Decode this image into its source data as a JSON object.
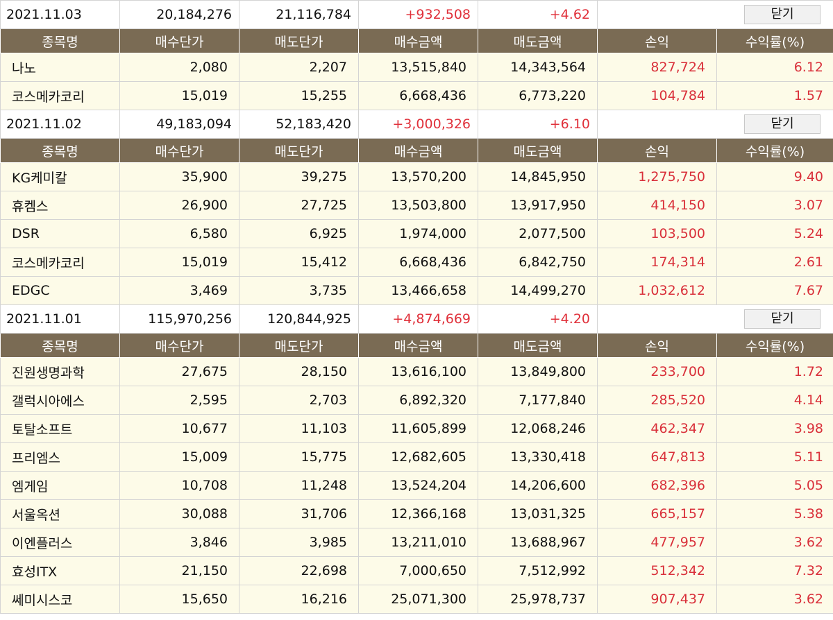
{
  "headers": [
    "종목명",
    "매수단가",
    "매도단가",
    "매수금액",
    "매도금액",
    "손익",
    "수익률(%)"
  ],
  "close_label": "닫기",
  "groups": [
    {
      "date": "2021.11.03",
      "buy_total": "20,184,276",
      "sell_total": "21,116,784",
      "profit": "+932,508",
      "rate": "+4.62",
      "rows": [
        {
          "name": "나노",
          "buy_price": "2,080",
          "sell_price": "2,207",
          "buy_amt": "13,515,840",
          "sell_amt": "14,343,564",
          "pl": "827,724",
          "rate": "6.12"
        },
        {
          "name": "코스메카코리",
          "buy_price": "15,019",
          "sell_price": "15,255",
          "buy_amt": "6,668,436",
          "sell_amt": "6,773,220",
          "pl": "104,784",
          "rate": "1.57"
        }
      ]
    },
    {
      "date": "2021.11.02",
      "buy_total": "49,183,094",
      "sell_total": "52,183,420",
      "profit": "+3,000,326",
      "rate": "+6.10",
      "rows": [
        {
          "name": "KG케미칼",
          "buy_price": "35,900",
          "sell_price": "39,275",
          "buy_amt": "13,570,200",
          "sell_amt": "14,845,950",
          "pl": "1,275,750",
          "rate": "9.40"
        },
        {
          "name": "휴켐스",
          "buy_price": "26,900",
          "sell_price": "27,725",
          "buy_amt": "13,503,800",
          "sell_amt": "13,917,950",
          "pl": "414,150",
          "rate": "3.07"
        },
        {
          "name": "DSR",
          "buy_price": "6,580",
          "sell_price": "6,925",
          "buy_amt": "1,974,000",
          "sell_amt": "2,077,500",
          "pl": "103,500",
          "rate": "5.24"
        },
        {
          "name": "코스메카코리",
          "buy_price": "15,019",
          "sell_price": "15,412",
          "buy_amt": "6,668,436",
          "sell_amt": "6,842,750",
          "pl": "174,314",
          "rate": "2.61"
        },
        {
          "name": "EDGC",
          "buy_price": "3,469",
          "sell_price": "3,735",
          "buy_amt": "13,466,658",
          "sell_amt": "14,499,270",
          "pl": "1,032,612",
          "rate": "7.67"
        }
      ]
    },
    {
      "date": "2021.11.01",
      "buy_total": "115,970,256",
      "sell_total": "120,844,925",
      "profit": "+4,874,669",
      "rate": "+4.20",
      "rows": [
        {
          "name": "진원생명과학",
          "buy_price": "27,675",
          "sell_price": "28,150",
          "buy_amt": "13,616,100",
          "sell_amt": "13,849,800",
          "pl": "233,700",
          "rate": "1.72"
        },
        {
          "name": "갤럭시아에스",
          "buy_price": "2,595",
          "sell_price": "2,703",
          "buy_amt": "6,892,320",
          "sell_amt": "7,177,840",
          "pl": "285,520",
          "rate": "4.14"
        },
        {
          "name": "토탈소프트",
          "buy_price": "10,677",
          "sell_price": "11,103",
          "buy_amt": "11,605,899",
          "sell_amt": "12,068,246",
          "pl": "462,347",
          "rate": "3.98"
        },
        {
          "name": "프리엠스",
          "buy_price": "15,009",
          "sell_price": "15,775",
          "buy_amt": "12,682,605",
          "sell_amt": "13,330,418",
          "pl": "647,813",
          "rate": "5.11"
        },
        {
          "name": "엠게임",
          "buy_price": "10,708",
          "sell_price": "11,248",
          "buy_amt": "13,524,204",
          "sell_amt": "14,206,600",
          "pl": "682,396",
          "rate": "5.05"
        },
        {
          "name": "서울옥션",
          "buy_price": "30,088",
          "sell_price": "31,706",
          "buy_amt": "12,366,168",
          "sell_amt": "13,031,325",
          "pl": "665,157",
          "rate": "5.38"
        },
        {
          "name": "이엔플러스",
          "buy_price": "3,846",
          "sell_price": "3,985",
          "buy_amt": "13,211,010",
          "sell_amt": "13,688,967",
          "pl": "477,957",
          "rate": "3.62"
        },
        {
          "name": "효성ITX",
          "buy_price": "21,150",
          "sell_price": "22,698",
          "buy_amt": "7,000,650",
          "sell_amt": "7,512,992",
          "pl": "512,342",
          "rate": "7.32"
        },
        {
          "name": "쎄미시스코",
          "buy_price": "15,650",
          "sell_price": "16,216",
          "buy_amt": "25,071,300",
          "sell_amt": "25,978,737",
          "pl": "907,437",
          "rate": "3.62"
        }
      ]
    }
  ]
}
